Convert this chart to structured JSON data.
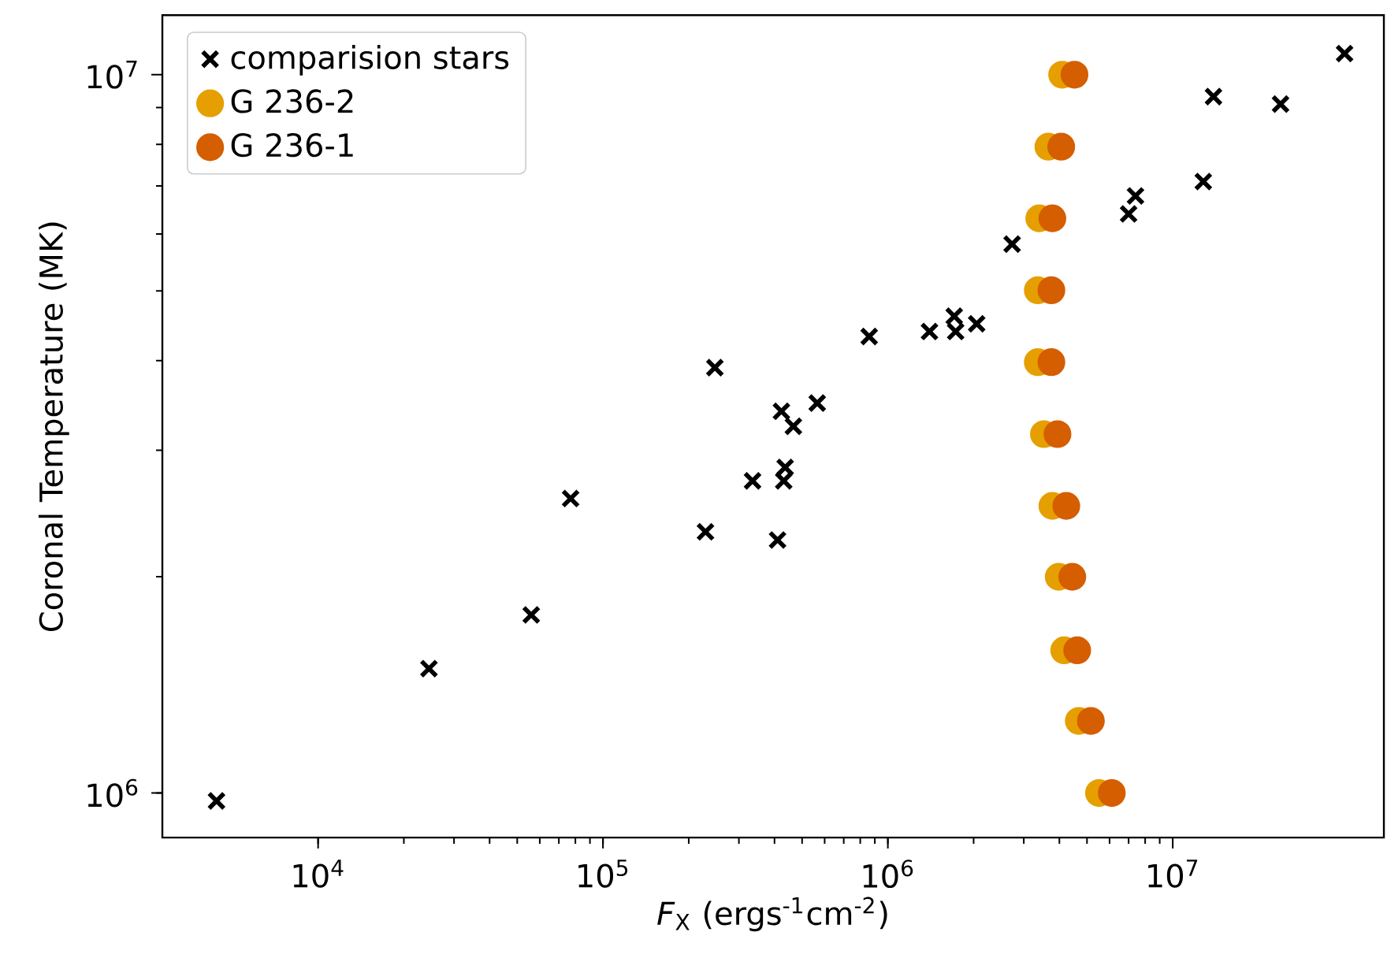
{
  "chart_data": {
    "type": "scatter",
    "xlabel": "*F*$_{X}$ (ergs$^{-1}$cm$^{-2}$)",
    "ylabel": "Coronal Temperature (MK)",
    "log": "xy",
    "legend": "top left",
    "grid": false,
    "xlim": [
      2840,
      55100000
    ],
    "ylim": [
      867000,
      12100000
    ],
    "xticks": [
      {
        "value": 10000,
        "label": "10$^{4}$"
      },
      {
        "value": 100000,
        "label": "10$^{5}$"
      },
      {
        "value": 1000000,
        "label": "10$^{6}$"
      },
      {
        "value": 10000000,
        "label": "10$^{7}$"
      }
    ],
    "yticks": [
      {
        "value": 1000000,
        "label": "10$^{6}$"
      },
      {
        "value": 10000000,
        "label": "10$^{7}$"
      }
    ],
    "series": [
      {
        "name": "comparision stars",
        "color": "#000000",
        "marker": "cross",
        "x": [
          4400,
          24500,
          56000,
          77000,
          229000,
          247000,
          335000,
          410000,
          423000,
          436000,
          431000,
          466000,
          565000,
          860000,
          1400000,
          1710000,
          1730000,
          2050000,
          2730000,
          7000000,
          7400000,
          12800000,
          13900000,
          23900000,
          40100000
        ],
        "values": [
          975000,
          1490000,
          1770000,
          2570000,
          2310000,
          3910000,
          2720000,
          2250000,
          3400000,
          2840000,
          2720000,
          3240000,
          3490000,
          4320000,
          4390000,
          4610000,
          4390000,
          4500000,
          5810000,
          6400000,
          6780000,
          7100000,
          9320000,
          9100000,
          10700000
        ]
      },
      {
        "name": "G 236-2",
        "color": "#e69f00",
        "marker": "circle",
        "x": [
          4090000,
          3660000,
          3400000,
          3360000,
          3360000,
          3530000,
          3780000,
          3980000,
          4160000,
          4680000,
          5510000
        ],
        "values": [
          10000000,
          7940000,
          6310000,
          5010000,
          3980000,
          3160000,
          2510000,
          2000000,
          1580000,
          1260000,
          1000000
        ]
      },
      {
        "name": "G 236-1",
        "color": "#d55e00",
        "marker": "circle",
        "x": [
          4520000,
          4060000,
          3780000,
          3750000,
          3750000,
          3940000,
          4230000,
          4440000,
          4620000,
          5160000,
          6110000
        ],
        "values": [
          10000000,
          7940000,
          6310000,
          5010000,
          3980000,
          3160000,
          2510000,
          2000000,
          1580000,
          1260000,
          1000000
        ]
      }
    ]
  }
}
